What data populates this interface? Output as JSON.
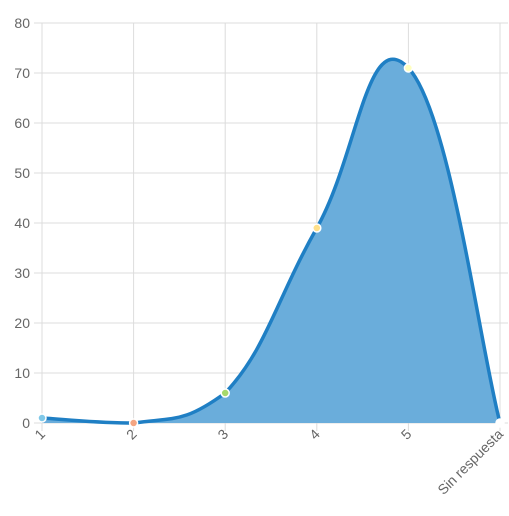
{
  "chart_data": {
    "type": "area",
    "categories": [
      "1",
      "2",
      "3",
      "4",
      "5",
      "Sin respuesta"
    ],
    "values": [
      1,
      0,
      6,
      39,
      71,
      0
    ],
    "title": "",
    "xlabel": "",
    "ylabel": "",
    "ylim": [
      0,
      80
    ],
    "yticks": [
      0,
      10,
      20,
      30,
      40,
      50,
      60,
      70,
      80
    ],
    "grid": true,
    "legend": "none",
    "colors": {
      "fill": "#6aaddb",
      "line": "#1f7fc4",
      "grid": "#dcdcdc",
      "tick_text": "#666666",
      "points": [
        "#7fc8e8",
        "#f4a582",
        "#a6d96a",
        "#fee08b",
        "#ffffbf",
        "#ffffff"
      ]
    }
  }
}
